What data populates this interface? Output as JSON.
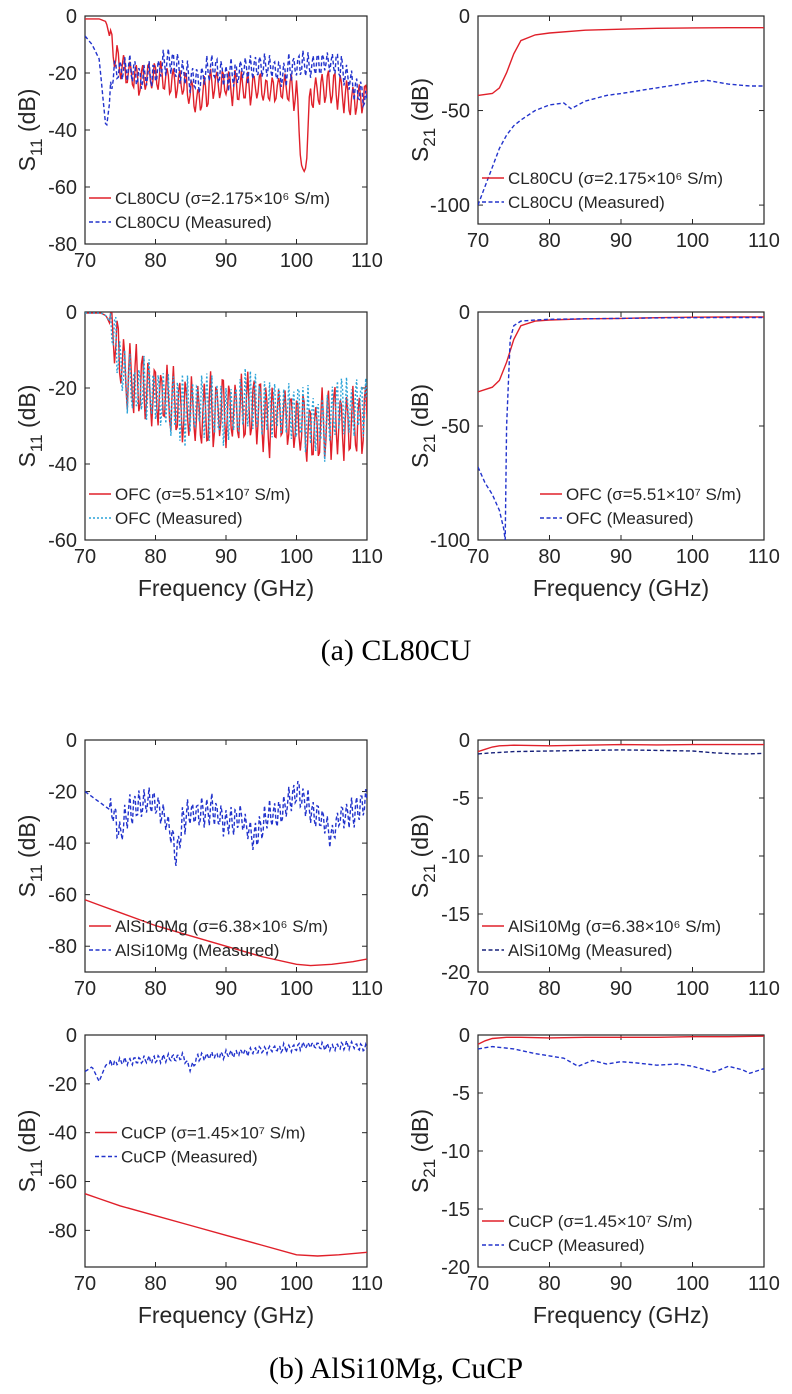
{
  "colors": {
    "simulated": "#e0202a",
    "measured": "#2233cc",
    "measured_light": "#2ba3d8",
    "measured_dark": "#16207a",
    "axis": "#262626"
  },
  "captions": [
    "(a)  CL80CU",
    "(b)  AlSi10Mg,  CuCP"
  ],
  "chart_data": [
    {
      "type": "line",
      "panel": "a-s11-cl80cu",
      "xlabel": "",
      "ylabel_main": "S",
      "ylabel_sub": "11",
      "ylabel_unit": " (dB)",
      "xlim": [
        70,
        110
      ],
      "ylim": [
        -80,
        0
      ],
      "xticks": [
        "70",
        "80",
        "90",
        "100",
        "110"
      ],
      "yticks": [
        "0",
        "-20",
        "-40",
        "-60",
        "-80"
      ],
      "legend_position": "bottom-left",
      "series": [
        {
          "name": "CL80CU (σ=2.175×10⁶ S/m)",
          "style": "solid",
          "color": "simulated",
          "mode": "osc",
          "amp": 7,
          "x": [
            70,
            72,
            73,
            74,
            76,
            78,
            80,
            82,
            84,
            86,
            88,
            90,
            92,
            94,
            96,
            98,
            100,
            101,
            102,
            104,
            106,
            108,
            110
          ],
          "y": [
            -1,
            -1,
            -2,
            -13,
            -20,
            -22,
            -21,
            -23,
            -24,
            -30,
            -24,
            -24,
            -26,
            -25,
            -26,
            -25,
            -27,
            -60,
            -28,
            -25,
            -26,
            -30,
            -28
          ]
        },
        {
          "name": "CL80CU (Measured)",
          "style": "dash",
          "color": "measured",
          "mode": "osc",
          "amp": 6,
          "x": [
            70,
            71,
            72,
            73,
            74,
            76,
            78,
            80,
            82,
            84,
            86,
            88,
            90,
            92,
            94,
            96,
            98,
            100,
            102,
            104,
            106,
            108,
            110
          ],
          "y": [
            -7,
            -10,
            -15,
            -40,
            -20,
            -18,
            -22,
            -20,
            -15,
            -20,
            -23,
            -18,
            -21,
            -19,
            -18,
            -18,
            -20,
            -17,
            -18,
            -16,
            -17,
            -24,
            -30
          ]
        }
      ]
    },
    {
      "type": "line",
      "panel": "a-s21-cl80cu",
      "xlabel": "",
      "ylabel_main": "S",
      "ylabel_sub": "21",
      "ylabel_unit": " (dB)",
      "xlim": [
        70,
        110
      ],
      "ylim": [
        -110,
        0
      ],
      "xticks": [
        "70",
        "80",
        "90",
        "100",
        "110"
      ],
      "yticks": [
        "0",
        "-50",
        "-100"
      ],
      "legend_position": "bottom-left",
      "series": [
        {
          "name": "CL80CU (σ=2.175×10⁶ S/m)",
          "style": "solid",
          "color": "simulated",
          "mode": "smooth",
          "amp": 0,
          "x": [
            70,
            72,
            73,
            74,
            75,
            76,
            78,
            80,
            85,
            90,
            95,
            100,
            105,
            110
          ],
          "y": [
            -42,
            -41,
            -38,
            -30,
            -20,
            -13,
            -10,
            -9,
            -7.5,
            -7,
            -6.5,
            -6.3,
            -6.2,
            -6.2
          ]
        },
        {
          "name": "CL80CU (Measured)",
          "style": "dash",
          "color": "measured",
          "mode": "smooth",
          "amp": 0,
          "x": [
            70,
            71,
            72,
            73,
            74,
            75,
            76,
            78,
            80,
            82,
            83,
            85,
            88,
            90,
            95,
            100,
            102,
            105,
            108,
            110
          ],
          "y": [
            -100,
            -90,
            -80,
            -70,
            -63,
            -58,
            -55,
            -50,
            -47,
            -46,
            -49,
            -45,
            -42,
            -41,
            -38,
            -35,
            -34,
            -36,
            -37,
            -37
          ]
        }
      ]
    },
    {
      "type": "line",
      "panel": "a-s11-ofc",
      "xlabel": "Frequency (GHz)",
      "ylabel_main": "S",
      "ylabel_sub": "11",
      "ylabel_unit": " (dB)",
      "xlim": [
        70,
        110
      ],
      "ylim": [
        -60,
        0
      ],
      "xticks": [
        "70",
        "80",
        "90",
        "100",
        "110"
      ],
      "yticks": [
        "0",
        "-20",
        "-40",
        "-60"
      ],
      "legend_position": "bottom-left",
      "series": [
        {
          "name": "OFC (σ=5.51×10⁷ S/m)",
          "style": "solid",
          "color": "simulated",
          "mode": "osc",
          "amp": 11,
          "x": [
            70,
            72,
            73,
            74,
            75,
            76,
            78,
            80,
            82,
            84,
            86,
            88,
            90,
            92,
            94,
            96,
            98,
            100,
            102,
            104,
            106,
            108,
            110
          ],
          "y": [
            0,
            0,
            -1,
            -5,
            -13,
            -17,
            -20,
            -22,
            -23,
            -25,
            -28,
            -26,
            -25,
            -27,
            -26,
            -28,
            -27,
            -30,
            -32,
            -29,
            -28,
            -30,
            -27
          ]
        },
        {
          "name": "OFC (Measured)",
          "style": "dot",
          "color": "measured_light",
          "mode": "osc",
          "amp": 10,
          "x": [
            70,
            72,
            73,
            74,
            75,
            76,
            78,
            80,
            82,
            84,
            86,
            88,
            90,
            92,
            94,
            96,
            98,
            100,
            102,
            104,
            106,
            108,
            110
          ],
          "y": [
            0,
            0,
            -1,
            -4,
            -14,
            -19,
            -21,
            -22,
            -24,
            -26,
            -24,
            -25,
            -27,
            -25,
            -24,
            -26,
            -25,
            -27,
            -28,
            -30,
            -24,
            -26,
            -24
          ]
        }
      ]
    },
    {
      "type": "line",
      "panel": "a-s21-ofc",
      "xlabel": "Frequency (GHz)",
      "ylabel_main": "S",
      "ylabel_sub": "21",
      "ylabel_unit": " (dB)",
      "xlim": [
        70,
        110
      ],
      "ylim": [
        -100,
        0
      ],
      "xticks": [
        "70",
        "80",
        "90",
        "100",
        "110"
      ],
      "yticks": [
        "0",
        "-50",
        "-100"
      ],
      "legend_position": "bottom-right",
      "series": [
        {
          "name": "OFC (σ=5.51×10⁷ S/m)",
          "style": "solid",
          "color": "simulated",
          "mode": "smooth",
          "amp": 0,
          "x": [
            70,
            72,
            73,
            74,
            75,
            76,
            78,
            80,
            85,
            90,
            95,
            100,
            105,
            110
          ],
          "y": [
            -35,
            -33,
            -30,
            -22,
            -12,
            -6,
            -4,
            -3.5,
            -3,
            -2.8,
            -2.5,
            -2.3,
            -2.2,
            -2.2
          ]
        },
        {
          "name": "OFC (Measured)",
          "style": "dash",
          "color": "measured",
          "mode": "smooth",
          "amp": 0,
          "x": [
            70,
            71,
            72,
            73,
            73.6,
            73.8,
            74,
            74.5,
            75,
            76,
            78,
            80,
            85,
            90,
            95,
            100,
            105,
            110
          ],
          "y": [
            -68,
            -75,
            -80,
            -87,
            -95,
            -100,
            -50,
            -12,
            -6,
            -4,
            -3.5,
            -3.2,
            -3,
            -2.8,
            -2.6,
            -2.5,
            -2.4,
            -2.4
          ]
        }
      ]
    },
    {
      "type": "line",
      "panel": "b-s11-alsi10mg",
      "xlabel": "",
      "ylabel_main": "S",
      "ylabel_sub": "11",
      "ylabel_unit": " (dB)",
      "xlim": [
        70,
        110
      ],
      "ylim": [
        -90,
        0
      ],
      "xticks": [
        "70",
        "80",
        "90",
        "100",
        "110"
      ],
      "yticks": [
        "0",
        "-20",
        "-40",
        "-60",
        "-80"
      ],
      "legend_position": "bottom-left",
      "series": [
        {
          "name": "AlSi10Mg (σ=6.38×10⁶ S/m)",
          "style": "solid",
          "color": "simulated",
          "mode": "smooth",
          "amp": 0,
          "x": [
            70,
            72,
            75,
            78,
            80,
            85,
            90,
            95,
            100,
            102,
            105,
            108,
            110
          ],
          "y": [
            -62,
            -64,
            -67,
            -70,
            -72,
            -76,
            -80,
            -84,
            -87,
            -87.5,
            -87,
            -86,
            -85
          ]
        },
        {
          "name": "AlSi10Mg (Measured)",
          "style": "dash",
          "color": "measured",
          "mode": "osc",
          "amp": 7,
          "x": [
            70,
            72,
            74,
            75,
            76,
            78,
            80,
            82,
            83,
            84,
            86,
            88,
            90,
            92,
            94,
            96,
            98,
            100,
            102,
            104,
            105,
            106,
            108,
            110
          ],
          "y": [
            -20,
            -24,
            -28,
            -38,
            -28,
            -25,
            -24,
            -34,
            -45,
            -30,
            -28,
            -27,
            -32,
            -30,
            -38,
            -30,
            -28,
            -20,
            -27,
            -32,
            -38,
            -30,
            -28,
            -24
          ]
        }
      ]
    },
    {
      "type": "line",
      "panel": "b-s21-alsi10mg",
      "xlabel": "",
      "ylabel_main": "S",
      "ylabel_sub": "21",
      "ylabel_unit": " (dB)",
      "xlim": [
        70,
        110
      ],
      "ylim": [
        -20,
        0
      ],
      "xticks": [
        "70",
        "80",
        "90",
        "100",
        "110"
      ],
      "yticks": [
        "0",
        "-5",
        "-10",
        "-15",
        "-20"
      ],
      "legend_position": "bottom-left",
      "series": [
        {
          "name": "AlSi10Mg (σ=6.38×10⁶ S/m)",
          "style": "solid",
          "color": "simulated",
          "mode": "smooth",
          "amp": 0,
          "x": [
            70,
            71,
            72,
            73,
            75,
            80,
            85,
            90,
            95,
            100,
            105,
            110
          ],
          "y": [
            -1,
            -0.8,
            -0.6,
            -0.5,
            -0.45,
            -0.5,
            -0.45,
            -0.4,
            -0.42,
            -0.4,
            -0.4,
            -0.4
          ]
        },
        {
          "name": "AlSi10Mg (Measured)",
          "style": "dash",
          "color": "measured_dark",
          "mode": "smooth",
          "amp": 0,
          "x": [
            70,
            72,
            75,
            80,
            85,
            90,
            95,
            100,
            103,
            106,
            108,
            110
          ],
          "y": [
            -1.2,
            -1.1,
            -1.0,
            -0.95,
            -0.9,
            -0.85,
            -0.9,
            -0.95,
            -1.1,
            -1.2,
            -1.2,
            -1.15
          ]
        }
      ]
    },
    {
      "type": "line",
      "panel": "b-s11-cucp",
      "xlabel": "Frequency (GHz)",
      "ylabel_main": "S",
      "ylabel_sub": "11",
      "ylabel_unit": " (dB)",
      "xlim": [
        70,
        110
      ],
      "ylim": [
        -95,
        0
      ],
      "xticks": [
        "70",
        "80",
        "90",
        "100",
        "110"
      ],
      "yticks": [
        "0",
        "-20",
        "-40",
        "-60",
        "-80"
      ],
      "legend_position": "left",
      "series": [
        {
          "name": "CuCP (σ=1.45×10⁷ S/m)",
          "style": "solid",
          "color": "simulated",
          "mode": "smooth",
          "amp": 0,
          "x": [
            70,
            72,
            75,
            80,
            85,
            90,
            95,
            100,
            103,
            106,
            108,
            110
          ],
          "y": [
            -65,
            -67,
            -70,
            -74,
            -78,
            -82,
            -86,
            -90,
            -90.5,
            -90,
            -89.5,
            -89
          ]
        },
        {
          "name": "CuCP (Measured)",
          "style": "dash",
          "color": "measured",
          "mode": "osc",
          "amp": 2,
          "x": [
            70,
            71,
            72,
            73,
            75,
            80,
            84,
            85,
            86,
            90,
            95,
            100,
            102,
            105,
            108,
            110
          ],
          "y": [
            -15,
            -13,
            -19,
            -12,
            -11,
            -10,
            -9,
            -14,
            -9,
            -8,
            -6,
            -5,
            -4,
            -5,
            -4,
            -6
          ]
        }
      ]
    },
    {
      "type": "line",
      "panel": "b-s21-cucp",
      "xlabel": "Frequency (GHz)",
      "ylabel_main": "S",
      "ylabel_sub": "21",
      "ylabel_unit": " (dB)",
      "xlim": [
        70,
        110
      ],
      "ylim": [
        -20,
        0
      ],
      "xticks": [
        "70",
        "80",
        "90",
        "100",
        "110"
      ],
      "yticks": [
        "0",
        "-5",
        "-10",
        "-15",
        "-20"
      ],
      "legend_position": "bottom-left",
      "series": [
        {
          "name": "CuCP (σ=1.45×10⁷ S/m)",
          "style": "solid",
          "color": "simulated",
          "mode": "smooth",
          "amp": 0,
          "x": [
            70,
            71,
            72,
            74,
            76,
            80,
            85,
            90,
            95,
            100,
            105,
            110
          ],
          "y": [
            -0.8,
            -0.5,
            -0.3,
            -0.2,
            -0.2,
            -0.25,
            -0.2,
            -0.2,
            -0.2,
            -0.15,
            -0.15,
            -0.1
          ]
        },
        {
          "name": "CuCP (Measured)",
          "style": "dash",
          "color": "measured",
          "mode": "smooth",
          "amp": 0,
          "x": [
            70,
            72,
            75,
            78,
            80,
            82,
            84,
            86,
            88,
            90,
            92,
            95,
            98,
            100,
            103,
            105,
            107,
            108,
            110
          ],
          "y": [
            -1.2,
            -1.0,
            -1.2,
            -1.6,
            -1.8,
            -2.0,
            -2.7,
            -2.2,
            -2.5,
            -2.3,
            -2.4,
            -2.6,
            -2.5,
            -2.7,
            -3.2,
            -2.7,
            -3.0,
            -3.3,
            -2.9
          ]
        }
      ]
    }
  ]
}
